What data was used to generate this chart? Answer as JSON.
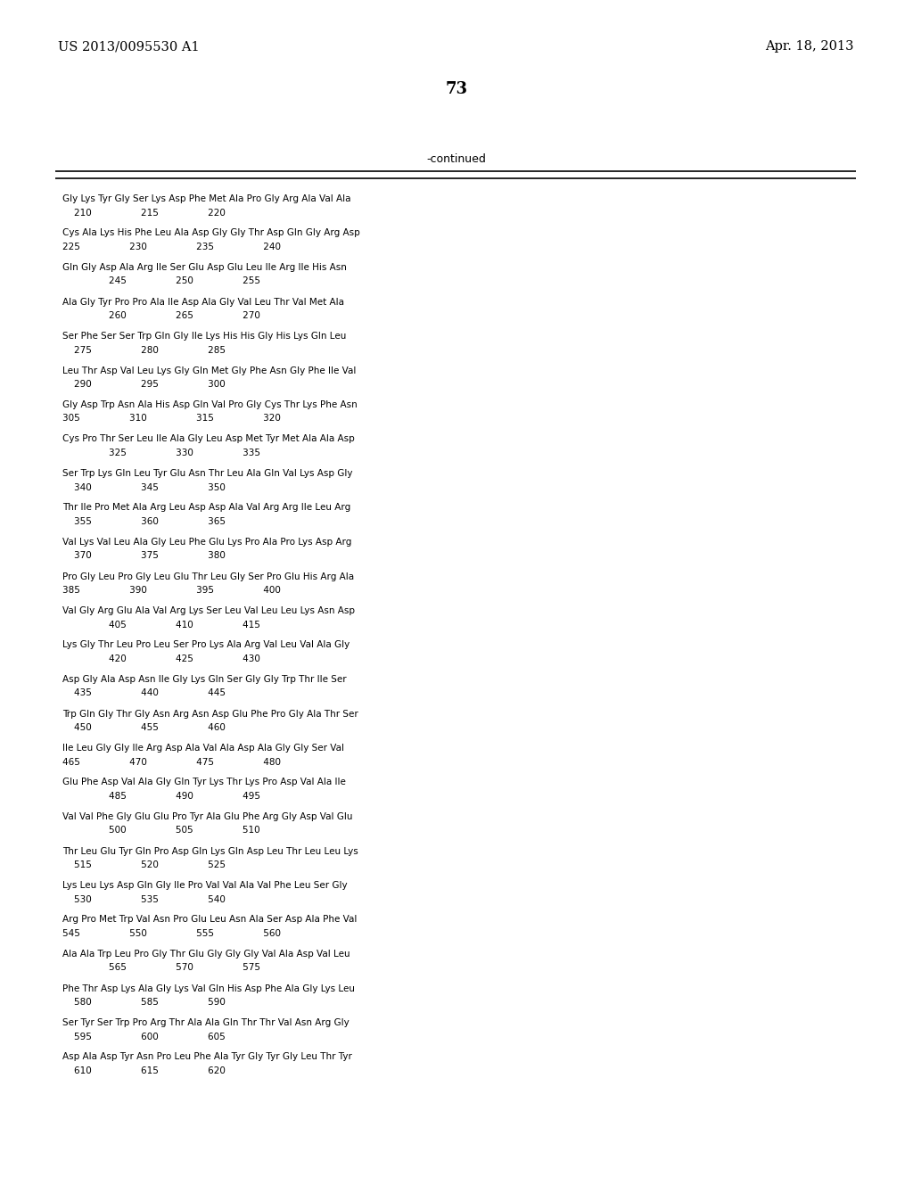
{
  "header_left": "US 2013/0095530 A1",
  "header_right": "Apr. 18, 2013",
  "page_number": "73",
  "continued_label": "-continued",
  "background_color": "#ffffff",
  "text_color": "#000000",
  "sequence_rows": [
    [
      "Gly Lys Tyr Gly Ser Lys Asp Phe Met Ala Pro Gly Arg Ala Val Ala",
      "    210                 215                 220"
    ],
    [
      "Cys Ala Lys His Phe Leu Ala Asp Gly Gly Thr Asp Gln Gly Arg Asp",
      "225                 230                 235                 240"
    ],
    [
      "Gln Gly Asp Ala Arg Ile Ser Glu Asp Glu Leu Ile Arg Ile His Asn",
      "                245                 250                 255"
    ],
    [
      "Ala Gly Tyr Pro Pro Ala Ile Asp Ala Gly Val Leu Thr Val Met Ala",
      "                260                 265                 270"
    ],
    [
      "Ser Phe Ser Ser Trp Gln Gly Ile Lys His His Gly His Lys Gln Leu",
      "    275                 280                 285"
    ],
    [
      "Leu Thr Asp Val Leu Lys Gly Gln Met Gly Phe Asn Gly Phe Ile Val",
      "    290                 295                 300"
    ],
    [
      "Gly Asp Trp Asn Ala His Asp Gln Val Pro Gly Cys Thr Lys Phe Asn",
      "305                 310                 315                 320"
    ],
    [
      "Cys Pro Thr Ser Leu Ile Ala Gly Leu Asp Met Tyr Met Ala Ala Asp",
      "                325                 330                 335"
    ],
    [
      "Ser Trp Lys Gln Leu Tyr Glu Asn Thr Leu Ala Gln Val Lys Asp Gly",
      "    340                 345                 350"
    ],
    [
      "Thr Ile Pro Met Ala Arg Leu Asp Asp Ala Val Arg Arg Ile Leu Arg",
      "    355                 360                 365"
    ],
    [
      "Val Lys Val Leu Ala Gly Leu Phe Glu Lys Pro Ala Pro Lys Asp Arg",
      "    370                 375                 380"
    ],
    [
      "Pro Gly Leu Pro Gly Leu Glu Thr Leu Gly Ser Pro Glu His Arg Ala",
      "385                 390                 395                 400"
    ],
    [
      "Val Gly Arg Glu Ala Val Arg Lys Ser Leu Val Leu Leu Lys Asn Asp",
      "                405                 410                 415"
    ],
    [
      "Lys Gly Thr Leu Pro Leu Ser Pro Lys Ala Arg Val Leu Val Ala Gly",
      "                420                 425                 430"
    ],
    [
      "Asp Gly Ala Asp Asn Ile Gly Lys Gln Ser Gly Gly Trp Thr Ile Ser",
      "    435                 440                 445"
    ],
    [
      "Trp Gln Gly Thr Gly Asn Arg Asn Asp Glu Phe Pro Gly Ala Thr Ser",
      "    450                 455                 460"
    ],
    [
      "Ile Leu Gly Gly Ile Arg Asp Ala Val Ala Asp Ala Gly Gly Ser Val",
      "465                 470                 475                 480"
    ],
    [
      "Glu Phe Asp Val Ala Gly Gln Tyr Lys Thr Lys Pro Asp Val Ala Ile",
      "                485                 490                 495"
    ],
    [
      "Val Val Phe Gly Glu Glu Pro Tyr Ala Glu Phe Arg Gly Asp Val Glu",
      "                500                 505                 510"
    ],
    [
      "Thr Leu Glu Tyr Gln Pro Asp Gln Lys Gln Asp Leu Thr Leu Leu Lys",
      "    515                 520                 525"
    ],
    [
      "Lys Leu Lys Asp Gln Gly Ile Pro Val Val Ala Val Phe Leu Ser Gly",
      "    530                 535                 540"
    ],
    [
      "Arg Pro Met Trp Val Asn Pro Glu Leu Asn Ala Ser Asp Ala Phe Val",
      "545                 550                 555                 560"
    ],
    [
      "Ala Ala Trp Leu Pro Gly Thr Glu Gly Gly Gly Val Ala Asp Val Leu",
      "                565                 570                 575"
    ],
    [
      "Phe Thr Asp Lys Ala Gly Lys Val Gln His Asp Phe Ala Gly Lys Leu",
      "    580                 585                 590"
    ],
    [
      "Ser Tyr Ser Trp Pro Arg Thr Ala Ala Gln Thr Thr Val Asn Arg Gly",
      "    595                 600                 605"
    ],
    [
      "Asp Ala Asp Tyr Asn Pro Leu Phe Ala Tyr Gly Tyr Gly Leu Thr Tyr",
      "    610                 615                 620"
    ]
  ]
}
